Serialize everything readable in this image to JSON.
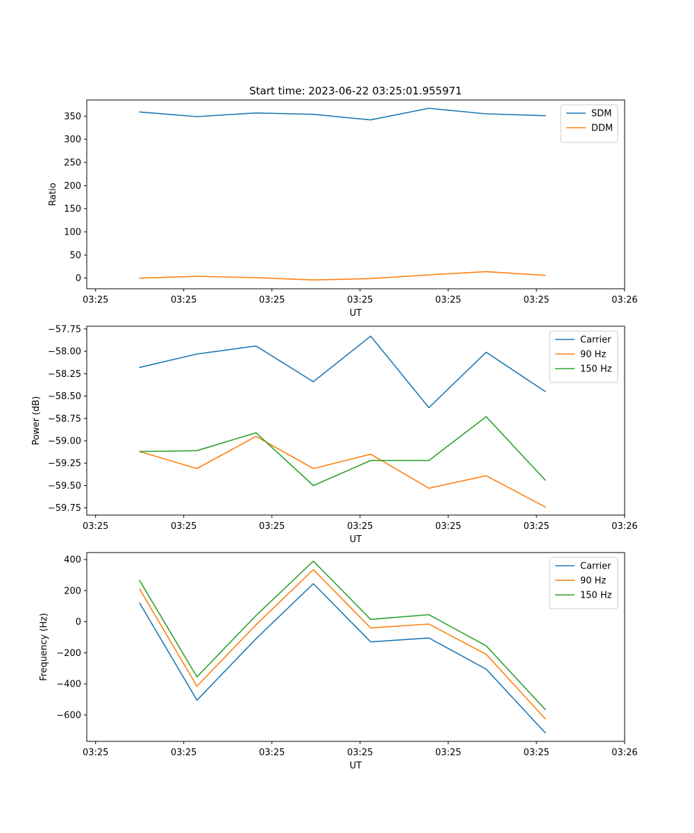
{
  "chart_data": [
    {
      "type": "line",
      "title": "Start time: 2023-06-22 03:25:01.955971",
      "xlabel": "UT",
      "ylabel": "Ratio",
      "x": [
        0.5,
        1.15,
        1.82,
        2.47,
        3.12,
        3.78,
        4.43,
        5.1
      ],
      "xlim": [
        -0.1,
        6.0
      ],
      "x_ticks": [
        0,
        1,
        2,
        3,
        4,
        5,
        6
      ],
      "x_tick_labels": [
        "03:25",
        "03:25",
        "03:25",
        "03:25",
        "03:25",
        "03:25",
        "03:26"
      ],
      "ylim": [
        -23,
        385
      ],
      "y_ticks": [
        0,
        50,
        100,
        150,
        200,
        250,
        300,
        350
      ],
      "y_tick_labels": [
        "0",
        "50",
        "100",
        "150",
        "200",
        "250",
        "300",
        "350"
      ],
      "legend": "top-right",
      "grid": false,
      "series": [
        {
          "name": "SDM",
          "color": "#1f77b4",
          "values": [
            359,
            349,
            357,
            354,
            342,
            367,
            355,
            351
          ]
        },
        {
          "name": "DDM",
          "color": "#ff7f0e",
          "values": [
            0,
            4,
            1,
            -4,
            -1,
            7,
            14,
            6
          ]
        }
      ]
    },
    {
      "type": "line",
      "title": "",
      "xlabel": "UT",
      "ylabel": "Power (dB)",
      "x": [
        0.5,
        1.15,
        1.82,
        2.47,
        3.12,
        3.78,
        4.43,
        5.1
      ],
      "xlim": [
        -0.1,
        6.0
      ],
      "x_ticks": [
        0,
        1,
        2,
        3,
        4,
        5,
        6
      ],
      "x_tick_labels": [
        "03:25",
        "03:25",
        "03:25",
        "03:25",
        "03:25",
        "03:25",
        "03:26"
      ],
      "ylim": [
        -59.83,
        -57.72
      ],
      "y_ticks": [
        -59.75,
        -59.5,
        -59.25,
        -59.0,
        -58.75,
        -58.5,
        -58.25,
        -58.0,
        -57.75
      ],
      "y_tick_labels": [
        "−59.75",
        "−59.50",
        "−59.25",
        "−59.00",
        "−58.75",
        "−58.50",
        "−58.25",
        "−58.00",
        "−57.75"
      ],
      "legend": "top-right",
      "grid": false,
      "series": [
        {
          "name": "Carrier",
          "color": "#1f77b4",
          "values": [
            -58.18,
            -58.03,
            -57.94,
            -58.34,
            -57.83,
            -58.63,
            -58.01,
            -58.45
          ]
        },
        {
          "name": "90 Hz",
          "color": "#ff7f0e",
          "values": [
            -59.12,
            -59.31,
            -58.95,
            -59.31,
            -59.15,
            -59.53,
            -59.39,
            -59.74
          ]
        },
        {
          "name": "150 Hz",
          "color": "#2ca02c",
          "values": [
            -59.12,
            -59.11,
            -58.91,
            -59.5,
            -59.22,
            -59.22,
            -58.73,
            -59.44
          ]
        }
      ]
    },
    {
      "type": "line",
      "title": "",
      "xlabel": "UT",
      "ylabel": "Frequency (Hz)",
      "x": [
        0.5,
        1.15,
        1.82,
        2.47,
        3.12,
        3.78,
        4.43,
        5.1
      ],
      "xlim": [
        -0.1,
        6.0
      ],
      "x_ticks": [
        0,
        1,
        2,
        3,
        4,
        5,
        6
      ],
      "x_tick_labels": [
        "03:25",
        "03:25",
        "03:25",
        "03:25",
        "03:25",
        "03:25",
        "03:26"
      ],
      "ylim": [
        -770,
        445
      ],
      "y_ticks": [
        -600,
        -400,
        -200,
        0,
        200,
        400
      ],
      "y_tick_labels": [
        "−600",
        "−400",
        "−200",
        "0",
        "200",
        "400"
      ],
      "legend": "top-right",
      "grid": false,
      "series": [
        {
          "name": "Carrier",
          "color": "#1f77b4",
          "values": [
            120,
            -505,
            -110,
            245,
            -130,
            -105,
            -305,
            -715
          ]
        },
        {
          "name": "90 Hz",
          "color": "#ff7f0e",
          "values": [
            210,
            -415,
            -20,
            335,
            -40,
            -15,
            -210,
            -625
          ]
        },
        {
          "name": "150 Hz",
          "color": "#2ca02c",
          "values": [
            265,
            -355,
            40,
            390,
            15,
            45,
            -155,
            -565
          ]
        }
      ]
    }
  ]
}
